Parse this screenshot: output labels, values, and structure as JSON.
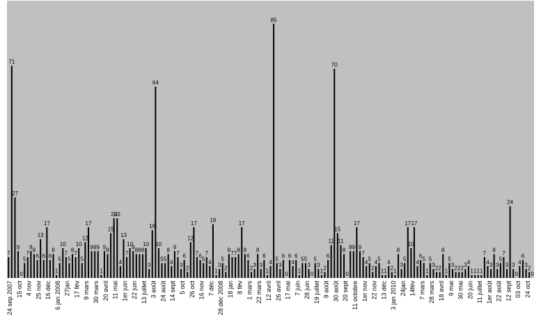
{
  "chart_data": {
    "type": "bar",
    "title": "",
    "xlabel": "",
    "ylabel": "",
    "ylim": [
      0,
      86
    ],
    "grid": false,
    "legend": "none",
    "colors": {
      "bar": "#000000",
      "plot_bg": "#c0c0c0",
      "page_bg": "#ffffff"
    },
    "values": [
      7,
      71,
      27,
      9,
      0,
      5,
      7,
      9,
      8,
      6,
      13,
      6,
      17,
      6,
      8,
      1,
      5,
      10,
      7,
      5,
      8,
      7,
      10,
      5,
      12,
      17,
      9,
      9,
      9,
      1,
      9,
      8,
      15,
      20,
      20,
      4,
      13,
      7,
      10,
      9,
      8,
      8,
      8,
      10,
      3,
      16,
      64,
      10,
      5,
      5,
      8,
      4,
      9,
      7,
      3,
      6,
      2,
      12,
      17,
      7,
      6,
      5,
      7,
      4,
      18,
      1,
      3,
      5,
      2,
      8,
      7,
      7,
      8,
      17,
      8,
      6,
      2,
      3,
      8,
      3,
      6,
      1,
      4,
      85,
      5,
      3,
      6,
      0,
      6,
      4,
      6,
      1,
      5,
      5,
      3,
      0,
      5,
      3,
      1,
      2,
      6,
      11,
      70,
      15,
      11,
      8,
      0,
      9,
      9,
      17,
      9,
      7,
      4,
      5,
      2,
      4,
      5,
      1,
      1,
      4,
      2,
      1,
      8,
      3,
      5,
      17,
      10,
      17,
      4,
      6,
      5,
      1,
      5,
      3,
      2,
      2,
      8,
      1,
      5,
      3,
      2,
      2,
      2,
      3,
      4,
      1,
      1,
      1,
      1,
      7,
      4,
      3,
      8,
      3,
      5,
      7,
      3,
      24,
      3,
      0,
      4,
      6,
      3,
      2,
      0
    ],
    "x_tick_labels": [
      "24 sep 2007",
      "15 oct",
      "4 nov",
      "25 nov",
      "16 déc",
      "6 jan 2008",
      "27jan",
      "17 fév",
      "9 mars",
      "30 mars",
      "20 avril",
      "11 mai",
      "1er juin",
      "22 juin",
      "13 juillet",
      "3 août",
      "24 août",
      "14 sept",
      "5 oct",
      "26 oct",
      "16 nov",
      "7 déc",
      "28 déc 2008",
      "18 jan",
      "8 fév",
      "1 mars",
      "22 mars",
      "12 avril",
      "26 avril",
      "17 mai",
      "7 juin",
      "28 juin",
      "19 juillet",
      "9 août",
      "30 août",
      "20 sept",
      "11 octobre",
      "1er nov",
      "22 nov",
      "13 déc",
      "3 jan 2010",
      "24jan",
      "14fév",
      "7 mars",
      "28 mars",
      "18 avril",
      "9 mai",
      "30 mai",
      "20 juin",
      "11 juillet",
      "1er août",
      "22 août",
      "12 sept",
      "03 oct",
      "24 oct"
    ]
  }
}
